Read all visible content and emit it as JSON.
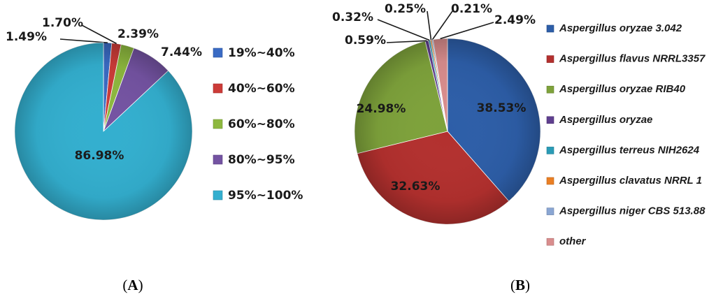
{
  "chart_data": [
    {
      "type": "pie",
      "panel_label": "A",
      "categories": [
        "19%~40%",
        "40%~60%",
        "60%~80%",
        "80%~95%",
        "95%~100%"
      ],
      "values": [
        1.49,
        1.7,
        2.39,
        7.44,
        86.98
      ],
      "data_labels": [
        "1.49%",
        "1.70%",
        "2.39%",
        "7.44%",
        "86.98%"
      ],
      "colors": [
        "#3a6bc4",
        "#cc3b38",
        "#8db83e",
        "#7453a2",
        "#33afcf"
      ],
      "legend_position": "right"
    },
    {
      "type": "pie",
      "panel_label": "B",
      "categories": [
        "Aspergillus oryzae 3.042",
        "Aspergillus flavus NRRL3357",
        "Aspergillus oryzae RIB40",
        "Aspergillus oryzae",
        "Aspergillus terreus NIH2624",
        "Aspergillus clavatus NRRL 1",
        "Aspergillus niger CBS 513.88",
        "other"
      ],
      "values": [
        38.53,
        32.63,
        24.98,
        0.59,
        0.32,
        0.25,
        0.21,
        2.49
      ],
      "data_labels": [
        "38.53%",
        "32.63%",
        "24.98%",
        "0.59%",
        "0.32%",
        "0.25%",
        "0.21%",
        "2.49%"
      ],
      "colors": [
        "#2d5ea8",
        "#b3302e",
        "#7ea23b",
        "#5f3f8f",
        "#2a9bb6",
        "#ea7f24",
        "#8aa6d3",
        "#d98d8d"
      ],
      "legend_position": "right"
    }
  ]
}
